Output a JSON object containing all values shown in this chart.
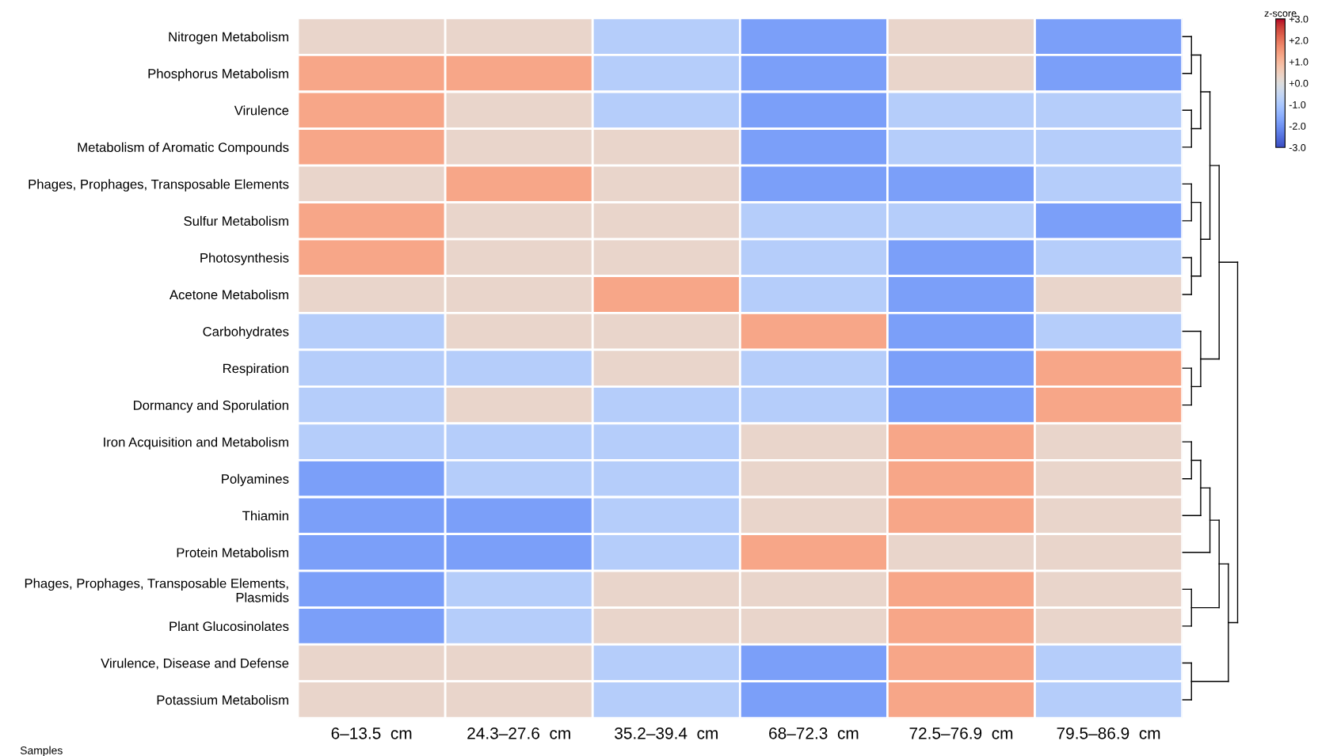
{
  "chart_data": {
    "type": "heatmap",
    "xlabel": "Samples",
    "clabel": "z-score",
    "categories": [
      "6–13.5  cm",
      "24.3–27.6  cm",
      "35.2–39.4  cm",
      "68–72.3  cm",
      "72.5–76.9  cm",
      "79.5–86.9  cm"
    ],
    "y_categories": [
      "Nitrogen Metabolism",
      "Phosphorus Metabolism",
      "Virulence",
      "Metabolism of Aromatic Compounds",
      "Phages, Prophages, Transposable Elements",
      "Sulfur Metabolism",
      "Photosynthesis",
      "Acetone Metabolism",
      "Carbohydrates",
      "Respiration",
      "Dormancy and Sporulation",
      "Iron Acquisition and Metabolism",
      "Polyamines",
      "Thiamin",
      "Protein Metabolism",
      "Phages, Prophages, Transposable Elements,\n   Plasmids",
      "Plant Glucosinolates",
      "Virulence, Disease and Defense",
      "Potassium Metabolism"
    ],
    "cells": [
      [
        0.3,
        0.3,
        -0.8,
        -1.8,
        0.3,
        -1.8
      ],
      [
        1.3,
        1.3,
        -0.8,
        -1.8,
        0.3,
        -1.8
      ],
      [
        1.3,
        0.3,
        -0.8,
        -1.8,
        -0.8,
        -0.8
      ],
      [
        1.3,
        0.3,
        0.3,
        -1.8,
        -0.8,
        -0.8
      ],
      [
        0.3,
        1.3,
        0.3,
        -1.8,
        -1.8,
        -0.8
      ],
      [
        1.3,
        0.3,
        0.3,
        -0.8,
        -0.8,
        -1.8
      ],
      [
        1.3,
        0.3,
        0.3,
        -0.8,
        -1.8,
        -0.8
      ],
      [
        0.3,
        0.3,
        1.3,
        -0.8,
        -1.8,
        0.3
      ],
      [
        -0.8,
        0.3,
        0.3,
        1.3,
        -1.8,
        -0.8
      ],
      [
        -0.8,
        -0.8,
        0.3,
        -0.8,
        -1.8,
        1.3
      ],
      [
        -0.8,
        0.3,
        -0.8,
        -0.8,
        -1.8,
        1.3
      ],
      [
        -0.8,
        -0.8,
        -0.8,
        0.3,
        1.3,
        0.3
      ],
      [
        -1.8,
        -0.8,
        -0.8,
        0.3,
        1.3,
        0.3
      ],
      [
        -1.8,
        -1.8,
        -0.8,
        0.3,
        1.3,
        0.3
      ],
      [
        -1.8,
        -1.8,
        -0.8,
        1.3,
        0.3,
        0.3
      ],
      [
        -1.8,
        -0.8,
        0.3,
        0.3,
        1.3,
        0.3
      ],
      [
        -1.8,
        -0.8,
        0.3,
        0.3,
        1.3,
        0.3
      ],
      [
        0.3,
        0.3,
        -0.8,
        -1.8,
        1.3,
        -0.8
      ],
      [
        0.3,
        0.3,
        -0.8,
        -1.8,
        1.3,
        -0.8
      ]
    ],
    "clim": [
      -3,
      3
    ],
    "cticks": [
      {
        "value": 3,
        "label": "+3.0"
      },
      {
        "value": 2,
        "label": "+2.0"
      },
      {
        "value": 1,
        "label": "+1.0"
      },
      {
        "value": 0,
        "label": "+0.0"
      },
      {
        "value": -1,
        "label": "-1.0"
      },
      {
        "value": -2,
        "label": "-2.0"
      },
      {
        "value": -3,
        "label": "-3.0"
      }
    ]
  }
}
